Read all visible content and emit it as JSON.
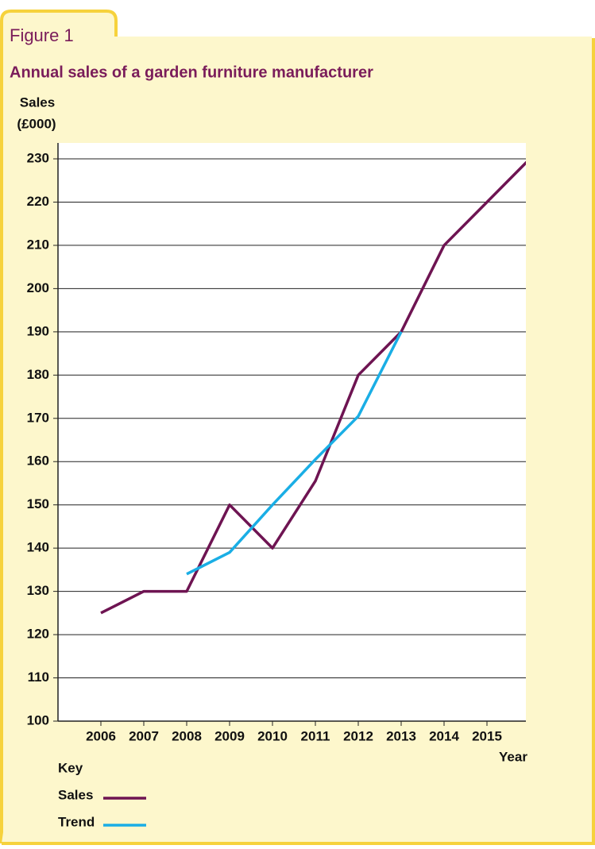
{
  "figure_label": "Figure 1",
  "chart_data": {
    "type": "line",
    "title": "Annual sales of a garden furniture manufacturer",
    "y_label": [
      "Sales",
      "(£000)"
    ],
    "x_label": "Year",
    "x": [
      2006,
      2007,
      2008,
      2009,
      2010,
      2011,
      2012,
      2013,
      2014,
      2015,
      2016
    ],
    "xlim": [
      2005,
      2016
    ],
    "xticks": [
      2006,
      2007,
      2008,
      2009,
      2010,
      2011,
      2012,
      2013,
      2014,
      2015
    ],
    "ylim": [
      100,
      230
    ],
    "yticks": [
      100,
      110,
      120,
      130,
      140,
      150,
      160,
      170,
      180,
      190,
      200,
      210,
      220,
      230
    ],
    "grid": true,
    "legend_title": "Key",
    "series": [
      {
        "name": "Sales",
        "color": "#6e1452",
        "values": [
          125,
          130,
          130,
          150,
          140,
          155.5,
          180,
          190,
          210,
          220,
          230
        ]
      },
      {
        "name": "Trend",
        "color": "#1aaee5",
        "values": [
          null,
          null,
          134,
          139,
          150,
          160.5,
          170.5,
          190,
          null,
          null,
          null
        ]
      }
    ]
  }
}
